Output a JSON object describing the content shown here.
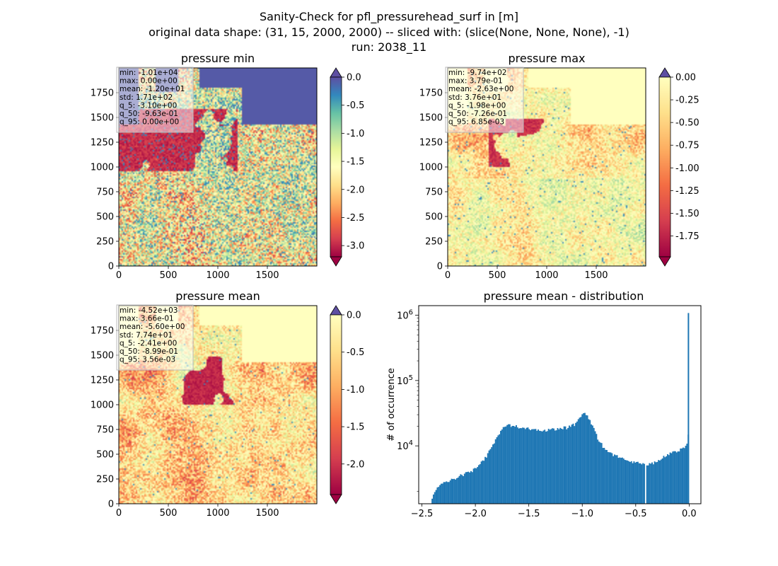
{
  "figure": {
    "title_lines": [
      "Sanity-Check for pfl_pressurehead_surf in [m]",
      "original data shape: (31, 15, 2000, 2000) -- sliced with: (slice(None, None, None), -1)",
      "run: 2038_11"
    ]
  },
  "colors": {
    "bar": "#1f77b4",
    "cmap_spectral": [
      "#9e0142",
      "#d53e4f",
      "#f46d43",
      "#fdae61",
      "#fee08b",
      "#ffffbf",
      "#e6f598",
      "#abdda4",
      "#66c2a5",
      "#3288bd",
      "#5e4fa2"
    ]
  },
  "chart_data": [
    {
      "type": "heatmap",
      "title": "pressure min",
      "xlim": [
        0,
        2000
      ],
      "ylim": [
        0,
        2000
      ],
      "x_ticks": [
        0,
        500,
        1000,
        1500
      ],
      "y_ticks": [
        0,
        250,
        500,
        750,
        1000,
        1250,
        1500,
        1750
      ],
      "colorbar": {
        "min": -3.2,
        "max": 0.0,
        "ticks": [
          "0.0",
          "-0.5",
          "-1.0",
          "-1.5",
          "-2.0",
          "-2.5",
          "-3.0"
        ],
        "tick_values": [
          0,
          -0.5,
          -1,
          -1.5,
          -2,
          -2.5,
          -3
        ],
        "extend": "both"
      },
      "stats": [
        "min: -1.01e+04",
        "max: 0.00e+00",
        "mean: -1.20e+01",
        "std: 1.71e+02",
        "q_5: -3.10e+00",
        "q_50: -9.63e-01",
        "q_95: 0.00e+00"
      ]
    },
    {
      "type": "heatmap",
      "title": "pressure max",
      "xlim": [
        0,
        2000
      ],
      "ylim": [
        0,
        2000
      ],
      "x_ticks": [
        0,
        500,
        1000,
        1500
      ],
      "y_ticks": [
        0,
        250,
        500,
        750,
        1000,
        1250,
        1500,
        1750
      ],
      "colorbar": {
        "min": -1.98,
        "max": 0.0,
        "ticks": [
          "0.00",
          "-0.25",
          "-0.50",
          "-0.75",
          "-1.00",
          "-1.25",
          "-1.50",
          "-1.75"
        ],
        "tick_values": [
          0,
          -0.25,
          -0.5,
          -0.75,
          -1,
          -1.25,
          -1.5,
          -1.75
        ],
        "extend": "both"
      },
      "stats": [
        "min: -9.74e+02",
        "max: 3.79e-01",
        "mean: -2.63e+00",
        "std: 3.76e+01",
        "q_5: -1.98e+00",
        "q_50: -7.26e-01",
        "q_95: 6.85e-03"
      ]
    },
    {
      "type": "heatmap",
      "title": "pressure mean",
      "xlim": [
        0,
        2000
      ],
      "ylim": [
        0,
        2000
      ],
      "x_ticks": [
        0,
        500,
        1000,
        1500
      ],
      "y_ticks": [
        0,
        250,
        500,
        750,
        1000,
        1250,
        1500,
        1750
      ],
      "colorbar": {
        "min": -2.41,
        "max": 0.0,
        "ticks": [
          "0.0",
          "-0.5",
          "-1.0",
          "-1.5",
          "-2.0"
        ],
        "tick_values": [
          0,
          -0.5,
          -1,
          -1.5,
          -2
        ],
        "extend": "both"
      },
      "stats": [
        "min: -4.52e+03",
        "max: 3.66e-01",
        "mean: -5.60e+00",
        "std: 7.74e+01",
        "q_5: -2.41e+00",
        "q_50: -8.99e-01",
        "q_95: 3.56e-03"
      ]
    },
    {
      "type": "bar",
      "title": "pressure mean - distribution",
      "xlabel": "",
      "ylabel": "# of occurrence",
      "xlim": [
        -2.53,
        0.11
      ],
      "yscale": "log",
      "ylim": [
        1300,
        1400000
      ],
      "x_ticks": [
        "−2.5",
        "−2.0",
        "−1.5",
        "−1.0",
        "−0.5",
        "0.0"
      ],
      "x_tick_values": [
        -2.5,
        -2.0,
        -1.5,
        -1.0,
        -0.5,
        0.0
      ],
      "y_ticks": [
        "10^4",
        "10^5",
        "10^6"
      ],
      "y_tick_values": [
        10000,
        100000,
        1000000
      ],
      "bin_width": 0.0121,
      "anchors": [
        [
          -2.41,
          1600
        ],
        [
          -2.38,
          2100
        ],
        [
          -2.3,
          2700
        ],
        [
          -2.2,
          3200
        ],
        [
          -2.1,
          3700
        ],
        [
          -2.0,
          4500
        ],
        [
          -1.95,
          5500
        ],
        [
          -1.9,
          7000
        ],
        [
          -1.85,
          9500
        ],
        [
          -1.8,
          14000
        ],
        [
          -1.76,
          18000
        ],
        [
          -1.72,
          20500
        ],
        [
          -1.65,
          20000
        ],
        [
          -1.55,
          18500
        ],
        [
          -1.45,
          17500
        ],
        [
          -1.35,
          17500
        ],
        [
          -1.25,
          18000
        ],
        [
          -1.15,
          19000
        ],
        [
          -1.06,
          22000
        ],
        [
          -1.02,
          28000
        ],
        [
          -0.99,
          34000
        ],
        [
          -0.96,
          30000
        ],
        [
          -0.92,
          22000
        ],
        [
          -0.86,
          13000
        ],
        [
          -0.8,
          9000
        ],
        [
          -0.72,
          7200
        ],
        [
          -0.6,
          6200
        ],
        [
          -0.5,
          5500
        ],
        [
          -0.42,
          5200
        ],
        [
          -0.35,
          5400
        ],
        [
          -0.28,
          6200
        ],
        [
          -0.2,
          7500
        ],
        [
          -0.12,
          8200
        ],
        [
          -0.06,
          9000
        ],
        [
          -0.03,
          10500
        ],
        [
          -0.012,
          16000
        ]
      ],
      "gap_at": -0.41,
      "spike": {
        "x": 0.0,
        "value": 1080000
      }
    }
  ]
}
